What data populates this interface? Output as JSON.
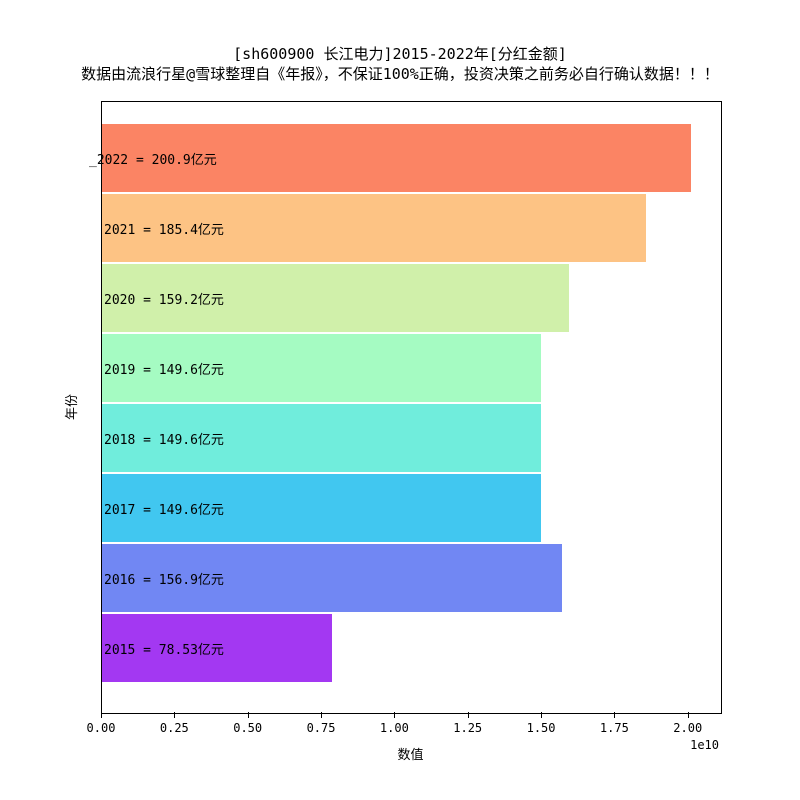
{
  "page": {
    "background": "#ffffff"
  },
  "chart_data": {
    "type": "bar",
    "orientation": "horizontal",
    "title": "[sh600900 长江电力]2015-2022年[分红金额]",
    "subtitle": "数据由流浪行星@雪球整理自《年报》，不保证100%正确，投资决策之前务必自行确认数据！！！",
    "xlabel": "数值",
    "ylabel": "年份",
    "x_axis_scale_label": "1e10",
    "xlim": [
      0,
      21100000000
    ],
    "grid": false,
    "legend": null,
    "x_tick_values": [
      0,
      2500000000,
      5000000000,
      7500000000,
      10000000000,
      12500000000,
      15000000000,
      17500000000,
      20000000000
    ],
    "x_ticks": [
      "0.00",
      "0.25",
      "0.50",
      "0.75",
      "1.00",
      "1.25",
      "1.50",
      "1.75",
      "2.00"
    ],
    "categories": [
      "2022",
      "2021",
      "2020",
      "2019",
      "2018",
      "2017",
      "2016",
      "2015"
    ],
    "values": [
      20090000000,
      18540000000,
      15920000000,
      14960000000,
      14960000000,
      14960000000,
      15690000000,
      7853000000
    ],
    "value_unit": "元",
    "bars": [
      {
        "year": "2022",
        "value": 20090000000,
        "label": "_2022 = 200.9亿元",
        "color": "#FB8464"
      },
      {
        "year": "2021",
        "value": 18540000000,
        "label": "2021 = 185.4亿元",
        "color": "#FDC384"
      },
      {
        "year": "2020",
        "value": 15920000000,
        "label": "2020 = 159.2亿元",
        "color": "#D0F0AA"
      },
      {
        "year": "2019",
        "value": 14960000000,
        "label": "2019 = 149.6亿元",
        "color": "#A5FBC2"
      },
      {
        "year": "2018",
        "value": 14960000000,
        "label": "2018 = 149.6亿元",
        "color": "#70EDDC"
      },
      {
        "year": "2017",
        "value": 14960000000,
        "label": "2017 = 149.6亿元",
        "color": "#41C7F0"
      },
      {
        "year": "2016",
        "value": 15690000000,
        "label": "2016 = 156.9亿元",
        "color": "#7187F3"
      },
      {
        "year": "2015",
        "value": 7853000000,
        "label": "2015 = 78.53亿元",
        "color": "#A338F2"
      }
    ]
  }
}
